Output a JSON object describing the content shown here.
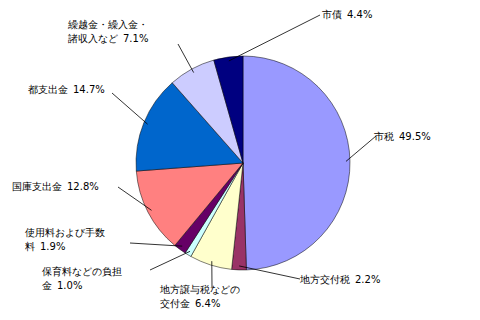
{
  "chart_data": {
    "type": "pie",
    "categories": [
      "市税",
      "地方交付税",
      "地方譲与税などの交付金",
      "保育料などの負担金",
      "使用料および手数料",
      "国庫支出金",
      "都支出金",
      "繰越金・繰入金・諸収入など",
      "市債"
    ],
    "values": [
      49.5,
      2.2,
      6.4,
      1.0,
      1.9,
      12.8,
      14.7,
      7.1,
      4.4
    ],
    "value_labels": [
      "49.5%",
      "2.2%",
      "6.4%",
      "1.0%",
      "1.9%",
      "12.8%",
      "14.7%",
      "7.1%",
      "4.4%"
    ],
    "colors": [
      "#9999ff",
      "#993366",
      "#ffffcc",
      "#ccffff",
      "#660066",
      "#ff8080",
      "#0066cc",
      "#ccccff",
      "#000080"
    ],
    "data_labels": true
  }
}
